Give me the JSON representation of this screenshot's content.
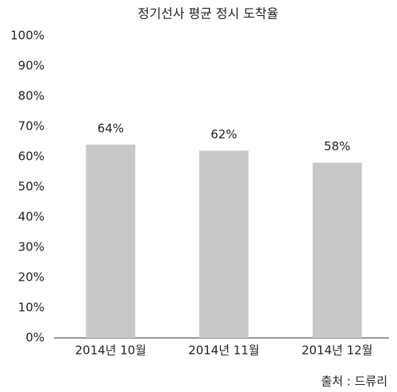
{
  "chart_data": {
    "type": "bar",
    "title": "정기선사 평균 정시 도착율",
    "categories": [
      "2014년 10월",
      "2014년 11월",
      "2014년 12월"
    ],
    "values": [
      64,
      62,
      58
    ],
    "value_labels": [
      "64%",
      "62%",
      "58%"
    ],
    "color": "#c8c8c8",
    "ylim": [
      0,
      100
    ],
    "yticks": [
      {
        "value": 0,
        "label": "0%"
      },
      {
        "value": 10,
        "label": "10%"
      },
      {
        "value": 20,
        "label": "20%"
      },
      {
        "value": 30,
        "label": "30%"
      },
      {
        "value": 40,
        "label": "40%"
      },
      {
        "value": 50,
        "label": "50%"
      },
      {
        "value": 60,
        "label": "60%"
      },
      {
        "value": 70,
        "label": "70%"
      },
      {
        "value": 80,
        "label": "80%"
      },
      {
        "value": 90,
        "label": "90%"
      },
      {
        "value": 100,
        "label": "100%"
      }
    ],
    "source": "출처 : 드류리"
  }
}
